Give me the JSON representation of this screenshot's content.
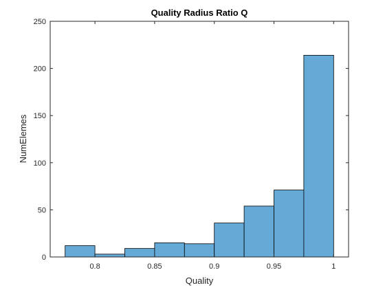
{
  "chart_data": {
    "type": "bar",
    "title": "Quality Radius Ratio Q",
    "xlabel": "Quality",
    "ylabel": "NumElemes",
    "bin_edges": [
      0.7749,
      0.825,
      0.875,
      0.9249,
      0.9749,
      1.0248
    ],
    "bins": [
      {
        "from": 0.775,
        "to": 0.8,
        "count": 12
      },
      {
        "from": 0.8,
        "to": 0.825,
        "count": 3
      },
      {
        "from": 0.825,
        "to": 0.85,
        "count": 9
      },
      {
        "from": 0.85,
        "to": 0.875,
        "count": 15
      },
      {
        "from": 0.875,
        "to": 0.9,
        "count": 14
      },
      {
        "from": 0.9,
        "to": 0.925,
        "count": 36
      },
      {
        "from": 0.925,
        "to": 0.95,
        "count": 54
      },
      {
        "from": 0.95,
        "to": 0.975,
        "count": 71
      },
      {
        "from": 0.975,
        "to": 1.0,
        "count": 214
      }
    ],
    "xlim": [
      0.7625,
      1.0125
    ],
    "ylim": [
      0,
      250
    ],
    "xticks": [
      "0.8",
      "0.85",
      "0.9",
      "0.95",
      "1"
    ],
    "xtick_values": [
      0.8,
      0.85,
      0.9,
      0.95,
      1.0
    ],
    "yticks": [
      "0",
      "50",
      "100",
      "150",
      "200",
      "250"
    ],
    "ytick_values": [
      0,
      50,
      100,
      150,
      200,
      250
    ],
    "grid": false,
    "legend": "none",
    "bar_color": "#65A9D7",
    "edge_color": "#000000"
  }
}
